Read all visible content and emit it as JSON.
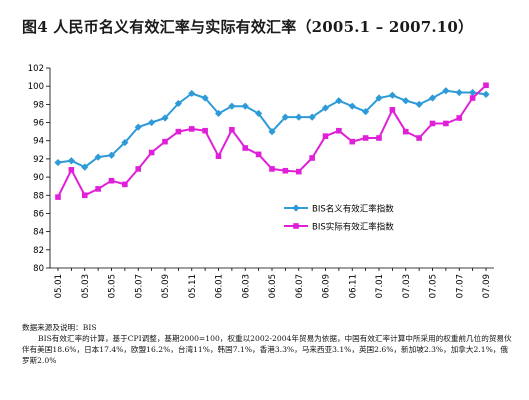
{
  "figure": {
    "title": "图4 人民币名义有效汇率与实际有效汇率（2005.1 – 2007.10）"
  },
  "chart_data": {
    "type": "line",
    "title": "",
    "xlabel": "",
    "ylabel": "",
    "ylim": [
      80,
      102
    ],
    "yticks": [
      80,
      82,
      84,
      86,
      88,
      90,
      92,
      94,
      96,
      98,
      100,
      102
    ],
    "grid": false,
    "legend_position": "center-right",
    "x": [
      "05.01",
      "05.02",
      "05.03",
      "05.04",
      "05.05",
      "05.06",
      "05.07",
      "05.08",
      "05.09",
      "05.10",
      "05.11",
      "05.12",
      "06.01",
      "06.02",
      "06.03",
      "06.04",
      "06.05",
      "06.06",
      "06.07",
      "06.08",
      "06.09",
      "06.10",
      "06.11",
      "06.12",
      "07.01",
      "07.02",
      "07.03",
      "07.04",
      "07.05",
      "07.06",
      "07.07",
      "07.08",
      "07.09"
    ],
    "x_tick_labels": [
      "05.01",
      "05.03",
      "05.05",
      "05.07",
      "05.09",
      "05.11",
      "06.01",
      "06.03",
      "06.05",
      "06.07",
      "06.09",
      "06.11",
      "07.01",
      "07.03",
      "07.05",
      "07.07",
      "07.09"
    ],
    "series": [
      {
        "name": "BIS名义有效汇率指数",
        "color": "#2e9bd8",
        "marker": "diamond",
        "values": [
          91.6,
          91.8,
          91.1,
          92.2,
          92.4,
          93.8,
          95.5,
          96.0,
          96.5,
          98.1,
          99.2,
          98.7,
          97.0,
          97.8,
          97.8,
          97.0,
          95.0,
          96.6,
          96.6,
          96.6,
          97.6,
          98.4,
          97.8,
          97.2,
          98.7,
          99.0,
          98.4,
          98.0,
          98.7,
          99.5,
          99.3,
          99.3,
          99.1
        ]
      },
      {
        "name": "BIS实际有效汇率指数",
        "color": "#e020d8",
        "marker": "square",
        "values": [
          87.8,
          90.8,
          88.0,
          88.7,
          89.6,
          89.2,
          90.9,
          92.7,
          93.9,
          95.0,
          95.3,
          95.1,
          92.3,
          95.2,
          93.2,
          92.5,
          90.9,
          90.7,
          90.6,
          92.1,
          94.5,
          95.1,
          93.9,
          94.3,
          94.3,
          97.4,
          95.0,
          94.3,
          95.9,
          95.9,
          96.5,
          98.7,
          100.1
        ]
      }
    ]
  },
  "notes": {
    "line1": "数据来源及说明：BIS",
    "line2": "BIS有效汇率的计算，基于CPI调整，基期2000=100，权重以2002-2004年贸易为依据，中国有效汇率计算中所采用的权重前几位的贸易伙伴有美国18.6%，日本17.4%，欧盟16.2%，台湾11%，韩国7.1%，香港3.3%，马来西亚3.1%，英国2.6%，新加坡2.3%，加拿大2.1%，俄罗斯2.0%"
  }
}
